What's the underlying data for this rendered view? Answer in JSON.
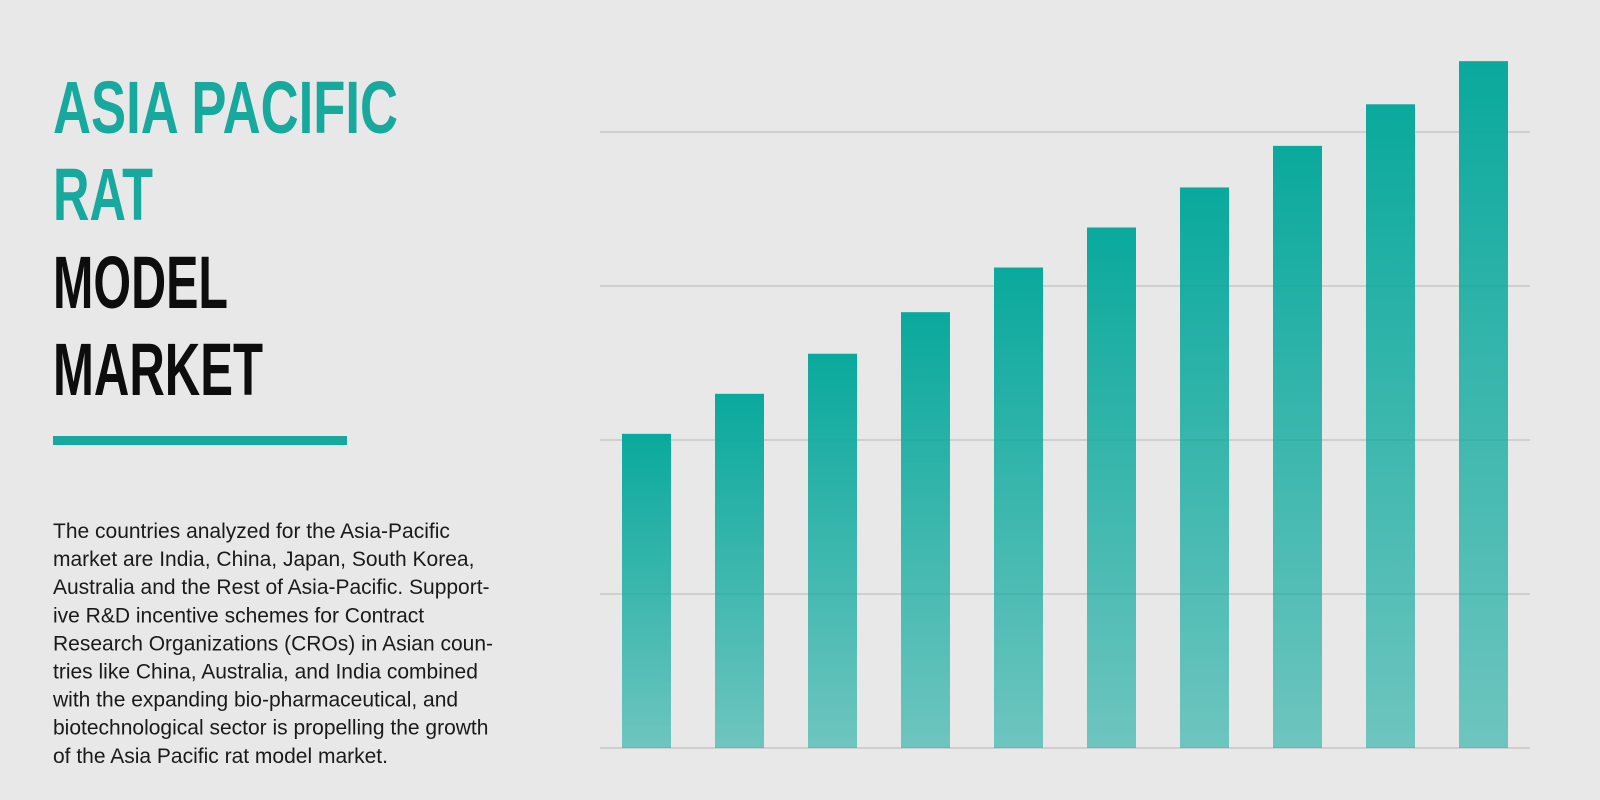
{
  "header": {
    "title_lines": [
      {
        "text": "ASIA PACIFIC",
        "color": "#17a89e"
      },
      {
        "text": "RAT",
        "color": "#17a89e"
      },
      {
        "text": "MODEL",
        "color": "#0d0d0d"
      },
      {
        "text": "MARKET",
        "color": "#0d0d0d"
      }
    ]
  },
  "body": {
    "lines": [
      "The countries analyzed for the Asia-Pacific",
      "market are India, China, Japan, South Korea,",
      "Australia and the Rest of Asia-Pacific. Support-",
      "ive R&D incentive schemes for Contract",
      "Research Organizations (CROs) in Asian coun-",
      "tries like China, Australia, and India combined",
      "with the expanding bio-pharmaceutical, and",
      "biotechnological sector is propelling the growth",
      "of the Asia Pacific rat model market."
    ]
  },
  "chart_data": {
    "type": "bar",
    "categories": [
      null,
      null,
      null,
      null,
      null,
      null,
      null,
      null,
      null,
      null
    ],
    "values": [
      2.04,
      2.3,
      2.56,
      2.83,
      3.12,
      3.38,
      3.64,
      3.91,
      4.18,
      4.46
    ],
    "color": "#0aa99d",
    "ylim": [
      0,
      4.5
    ],
    "yticks": [
      0,
      1,
      2,
      3,
      4
    ],
    "grid": true
  }
}
